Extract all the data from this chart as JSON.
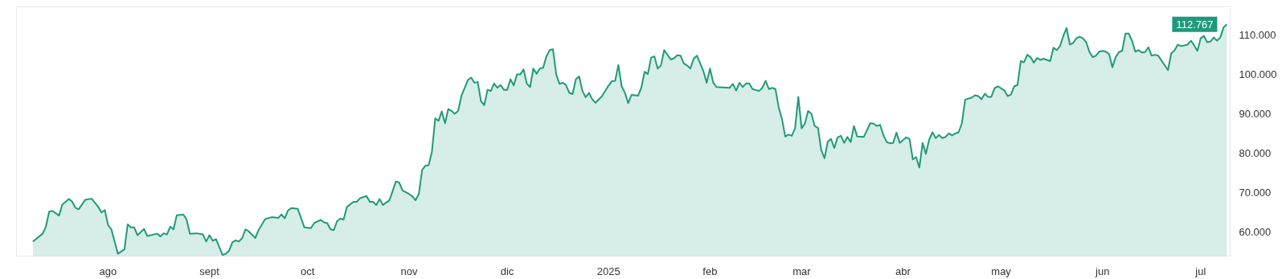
{
  "chart_data": {
    "type": "area",
    "xlim": [
      "2024-07-04",
      "2025-07-10"
    ],
    "ylim": [
      53800,
      117200
    ],
    "xticks": [
      {
        "value": "2024-08-01",
        "label": "ago"
      },
      {
        "value": "2024-09-01",
        "label": "sept"
      },
      {
        "value": "2024-10-01",
        "label": "oct"
      },
      {
        "value": "2024-11-01",
        "label": "nov"
      },
      {
        "value": "2024-12-01",
        "label": "dic"
      },
      {
        "value": "2025-01-01",
        "label": "2025"
      },
      {
        "value": "2025-02-01",
        "label": "feb"
      },
      {
        "value": "2025-03-01",
        "label": "mar"
      },
      {
        "value": "2025-04-01",
        "label": "abr"
      },
      {
        "value": "2025-05-01",
        "label": "may"
      },
      {
        "value": "2025-06-01",
        "label": "jun"
      },
      {
        "value": "2025-07-01",
        "label": "jul"
      }
    ],
    "yticks": [
      {
        "value": 60000,
        "label": "60.000"
      },
      {
        "value": 70000,
        "label": "70.000"
      },
      {
        "value": 80000,
        "label": "80.000"
      },
      {
        "value": 90000,
        "label": "90.000"
      },
      {
        "value": 100000,
        "label": "100.000"
      },
      {
        "value": 110000,
        "label": "110.000"
      }
    ],
    "grid": false,
    "annotations": [
      {
        "text": "112.767",
        "x": "2025-07-09",
        "y": 112767
      }
    ],
    "series": [
      {
        "color": "#1f9a7b",
        "x": [
          "2024-07-09",
          "2024-07-12",
          "2024-07-13",
          "2024-07-14",
          "2024-07-15",
          "2024-07-17",
          "2024-07-18",
          "2024-07-20",
          "2024-07-21",
          "2024-07-22",
          "2024-07-23",
          "2024-07-25",
          "2024-07-27",
          "2024-07-29",
          "2024-07-30",
          "2024-07-31",
          "2024-08-01",
          "2024-08-02",
          "2024-08-04",
          "2024-08-06",
          "2024-08-07",
          "2024-08-08",
          "2024-08-09",
          "2024-08-10",
          "2024-08-12",
          "2024-08-13",
          "2024-08-16",
          "2024-08-17",
          "2024-08-18",
          "2024-08-19",
          "2024-08-20",
          "2024-08-21",
          "2024-08-22",
          "2024-08-24",
          "2024-08-25",
          "2024-08-26",
          "2024-08-28",
          "2024-08-30",
          "2024-08-31",
          "2024-09-01",
          "2024-09-02",
          "2024-09-03",
          "2024-09-05",
          "2024-09-06",
          "2024-09-07",
          "2024-09-08",
          "2024-09-09",
          "2024-09-10",
          "2024-09-11",
          "2024-09-12",
          "2024-09-13",
          "2024-09-15",
          "2024-09-16",
          "2024-09-18",
          "2024-09-20",
          "2024-09-22",
          "2024-09-23",
          "2024-09-24",
          "2024-09-25",
          "2024-09-26",
          "2024-09-28",
          "2024-09-30",
          "2024-10-02",
          "2024-10-03",
          "2024-10-05",
          "2024-10-06",
          "2024-10-07",
          "2024-10-08",
          "2024-10-09",
          "2024-10-10",
          "2024-10-11",
          "2024-10-12",
          "2024-10-13",
          "2024-10-15",
          "2024-10-16",
          "2024-10-17",
          "2024-10-19",
          "2024-10-20",
          "2024-10-21",
          "2024-10-22",
          "2024-10-23",
          "2024-10-24",
          "2024-10-26",
          "2024-10-28",
          "2024-10-29",
          "2024-10-30",
          "2024-11-01",
          "2024-11-02",
          "2024-11-03",
          "2024-11-04",
          "2024-11-05",
          "2024-11-06",
          "2024-11-07",
          "2024-11-08",
          "2024-11-09",
          "2024-11-10",
          "2024-11-11",
          "2024-11-12",
          "2024-11-13",
          "2024-11-14",
          "2024-11-15",
          "2024-11-16",
          "2024-11-17",
          "2024-11-19",
          "2024-11-20",
          "2024-11-21",
          "2024-11-22",
          "2024-11-23",
          "2024-11-24",
          "2024-11-25",
          "2024-11-26",
          "2024-11-27",
          "2024-11-28",
          "2024-11-29",
          "2024-11-30",
          "2024-12-01",
          "2024-12-02",
          "2024-12-03",
          "2024-12-04",
          "2024-12-05",
          "2024-12-06",
          "2024-12-07",
          "2024-12-08",
          "2024-12-09",
          "2024-12-10",
          "2024-12-11",
          "2024-12-12",
          "2024-12-13",
          "2024-12-14",
          "2024-12-15",
          "2024-12-16",
          "2024-12-17",
          "2024-12-18",
          "2024-12-19",
          "2024-12-20",
          "2024-12-21",
          "2024-12-22",
          "2024-12-23",
          "2024-12-24",
          "2024-12-25",
          "2024-12-26",
          "2024-12-27",
          "2024-12-28",
          "2024-12-30",
          "2025-01-01",
          "2025-01-02",
          "2025-01-03",
          "2025-01-04",
          "2025-01-05",
          "2025-01-06",
          "2025-01-07",
          "2025-01-08",
          "2025-01-10",
          "2025-01-11",
          "2025-01-12",
          "2025-01-13",
          "2025-01-14",
          "2025-01-15",
          "2025-01-16",
          "2025-01-17",
          "2025-01-18",
          "2025-01-20",
          "2025-01-21",
          "2025-01-22",
          "2025-01-23",
          "2025-01-24",
          "2025-01-25",
          "2025-01-26",
          "2025-01-27",
          "2025-01-28",
          "2025-01-29",
          "2025-01-30",
          "2025-01-31",
          "2025-02-01",
          "2025-02-02",
          "2025-02-03",
          "2025-02-07",
          "2025-02-08",
          "2025-02-09",
          "2025-02-10",
          "2025-02-11",
          "2025-02-12",
          "2025-02-13",
          "2025-02-14",
          "2025-02-16",
          "2025-02-17",
          "2025-02-18",
          "2025-02-19",
          "2025-02-20",
          "2025-02-21",
          "2025-02-22",
          "2025-02-23",
          "2025-02-24",
          "2025-02-25",
          "2025-02-26",
          "2025-02-27",
          "2025-02-28",
          "2025-03-01",
          "2025-03-02",
          "2025-03-03",
          "2025-03-04",
          "2025-03-05",
          "2025-03-06",
          "2025-03-07",
          "2025-03-08",
          "2025-03-09",
          "2025-03-10",
          "2025-03-11",
          "2025-03-12",
          "2025-03-13",
          "2025-03-14",
          "2025-03-15",
          "2025-03-16",
          "2025-03-17",
          "2025-03-18",
          "2025-03-20",
          "2025-03-22",
          "2025-03-23",
          "2025-03-24",
          "2025-03-25",
          "2025-03-26",
          "2025-03-27",
          "2025-03-28",
          "2025-03-29",
          "2025-03-30",
          "2025-03-31",
          "2025-04-02",
          "2025-04-03",
          "2025-04-04",
          "2025-04-05",
          "2025-04-06",
          "2025-04-07",
          "2025-04-08",
          "2025-04-09",
          "2025-04-10",
          "2025-04-11",
          "2025-04-12",
          "2025-04-13",
          "2025-04-14",
          "2025-04-15",
          "2025-04-16",
          "2025-04-17",
          "2025-04-18",
          "2025-04-19",
          "2025-04-20",
          "2025-04-22",
          "2025-04-23",
          "2025-04-24",
          "2025-04-25",
          "2025-04-26",
          "2025-04-27",
          "2025-04-28",
          "2025-04-29",
          "2025-04-30",
          "2025-05-02",
          "2025-05-03",
          "2025-05-04",
          "2025-05-05",
          "2025-05-06",
          "2025-05-07",
          "2025-05-08",
          "2025-05-09",
          "2025-05-10",
          "2025-05-11",
          "2025-05-12",
          "2025-05-13",
          "2025-05-14",
          "2025-05-16",
          "2025-05-17",
          "2025-05-18",
          "2025-05-19",
          "2025-05-20",
          "2025-05-21",
          "2025-05-22",
          "2025-05-23",
          "2025-05-24",
          "2025-05-25",
          "2025-05-26",
          "2025-05-27",
          "2025-05-28",
          "2025-05-29",
          "2025-05-30",
          "2025-05-31",
          "2025-06-01",
          "2025-06-02",
          "2025-06-03",
          "2025-06-04",
          "2025-06-05",
          "2025-06-06",
          "2025-06-07",
          "2025-06-08",
          "2025-06-09",
          "2025-06-10",
          "2025-06-11",
          "2025-06-12",
          "2025-06-13",
          "2025-06-14",
          "2025-06-15",
          "2025-06-16",
          "2025-06-17",
          "2025-06-18",
          "2025-06-21",
          "2025-06-22",
          "2025-06-23",
          "2025-06-24",
          "2025-06-25",
          "2025-06-27",
          "2025-06-28",
          "2025-06-29",
          "2025-06-30",
          "2025-07-01",
          "2025-07-02",
          "2025-07-03",
          "2025-07-04",
          "2025-07-05",
          "2025-07-06",
          "2025-07-07",
          "2025-07-08",
          "2025-07-09"
        ],
        "values": [
          57500,
          59500,
          61300,
          65100,
          65300,
          64100,
          66900,
          68300,
          67700,
          66100,
          65700,
          68100,
          68400,
          66300,
          64900,
          65500,
          61700,
          60600,
          54400,
          55500,
          61900,
          61100,
          61100,
          59100,
          60700,
          58900,
          59500,
          58800,
          59600,
          59300,
          61300,
          60600,
          64200,
          64400,
          63100,
          59500,
          59600,
          59300,
          57500,
          59100,
          57700,
          58100,
          54100,
          54400,
          55200,
          57300,
          57800,
          57500,
          58400,
          60600,
          60100,
          58400,
          60400,
          63200,
          63700,
          63500,
          64400,
          63400,
          65400,
          66000,
          65800,
          61100,
          60900,
          62200,
          63000,
          62400,
          62200,
          60600,
          60400,
          62700,
          63300,
          63100,
          66300,
          67600,
          67600,
          68500,
          69100,
          67600,
          67600,
          66800,
          68300,
          66800,
          68000,
          72800,
          72500,
          70500,
          69600,
          69000,
          68000,
          69600,
          75700,
          76800,
          76900,
          80400,
          88800,
          88200,
          90600,
          87600,
          91200,
          90700,
          90000,
          90700,
          94500,
          98600,
          99200,
          97900,
          98100,
          93200,
          92200,
          96100,
          95800,
          97700,
          96600,
          97300,
          96100,
          96100,
          98800,
          97200,
          100000,
          100000,
          101300,
          97700,
          96800,
          101500,
          100200,
          101500,
          101700,
          104600,
          106200,
          106400,
          100000,
          97600,
          97900,
          97300,
          95300,
          95000,
          98800,
          99500,
          95800,
          94200,
          95300,
          93700,
          92800,
          94500,
          97200,
          98300,
          98400,
          102400,
          97000,
          95300,
          92700,
          94800,
          94600,
          96600,
          100700,
          100100,
          104300,
          104600,
          101500,
          102300,
          106200,
          103800,
          104100,
          104900,
          104800,
          102800,
          102300,
          101500,
          104000,
          104800,
          102800,
          100800,
          97900,
          101500,
          97900,
          96800,
          96600,
          97600,
          95900,
          97900,
          96800,
          97700,
          97700,
          96300,
          95800,
          96600,
          98400,
          96300,
          96600,
          96300,
          91600,
          88700,
          84200,
          84700,
          84400,
          86300,
          94300,
          86300,
          87500,
          90700,
          90000,
          86900,
          86400,
          80800,
          78700,
          82900,
          83600,
          81300,
          84000,
          84400,
          82600,
          84100,
          82800,
          86900,
          84200,
          84100,
          87600,
          87500,
          86900,
          87200,
          84600,
          82800,
          82500,
          82600,
          85200,
          82600,
          84000,
          83600,
          78400,
          79000,
          76300,
          82600,
          79800,
          83400,
          85300,
          83800,
          84600,
          83800,
          84100,
          85000,
          84500,
          85000,
          85300,
          87600,
          93600,
          94100,
          94700,
          94500,
          93700,
          95100,
          94300,
          94300,
          96500,
          97000,
          95900,
          94500,
          94900,
          97000,
          97300,
          103400,
          103100,
          105000,
          104400,
          103000,
          104200,
          103700,
          104000,
          103400,
          106800,
          106200,
          107200,
          109800,
          111800,
          107600,
          108000,
          109200,
          109600,
          109200,
          108200,
          105700,
          104400,
          104800,
          105800,
          106000,
          105800,
          105200,
          101800,
          104400,
          105700,
          106000,
          110400,
          110400,
          108600,
          105800,
          106200,
          105600,
          105700,
          106900,
          104800,
          105000,
          104800,
          101100,
          105400,
          106100,
          107600,
          107200,
          107600,
          108600,
          107400,
          106000,
          109200,
          109800,
          108200,
          108400,
          109400,
          108600,
          109400,
          112000,
          112767
        ]
      }
    ]
  }
}
